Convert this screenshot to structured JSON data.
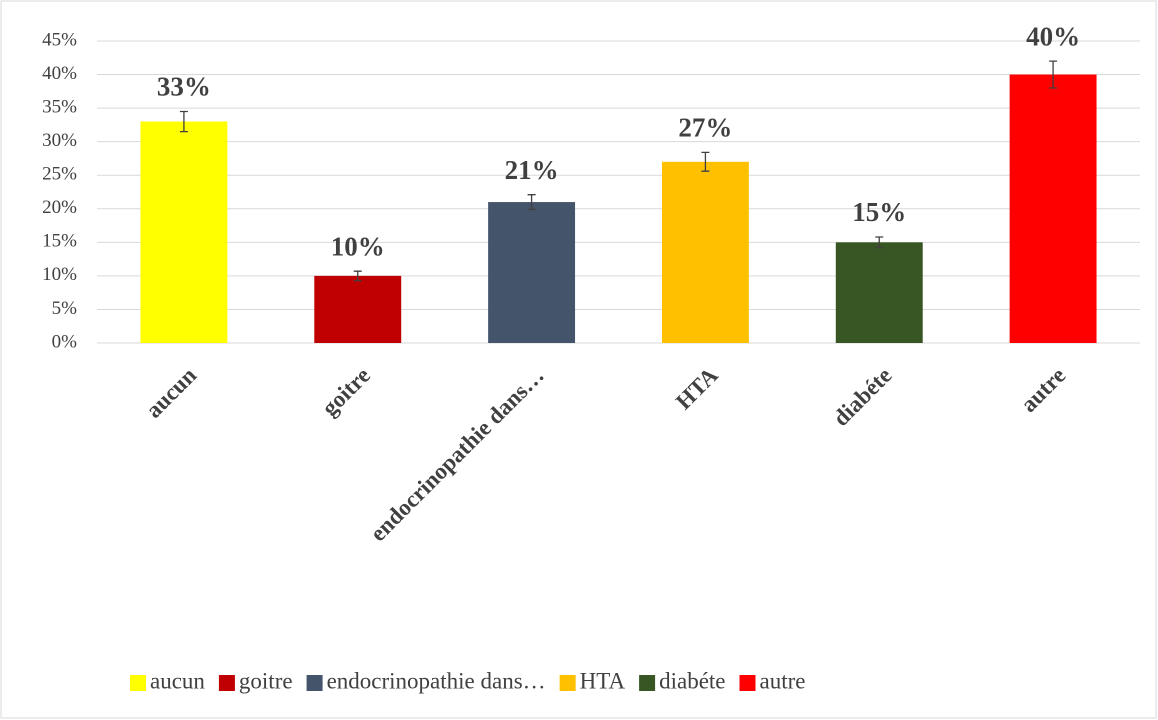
{
  "chart_data": {
    "type": "bar",
    "categories": [
      "aucun",
      "goitre",
      "endocrinopathie dans…",
      "HTA",
      "diabéte",
      "autre"
    ],
    "values": [
      33,
      10,
      21,
      27,
      15,
      40
    ],
    "value_labels": [
      "33%",
      "10%",
      "21%",
      "27%",
      "15%",
      "40%"
    ],
    "errors": [
      1.5,
      0.7,
      1.1,
      1.4,
      0.8,
      2.0
    ],
    "colors": [
      "#ffff00",
      "#c00000",
      "#44546a",
      "#ffc000",
      "#375623",
      "#ff0000"
    ],
    "ylim": [
      0,
      45
    ],
    "yticks": [
      {
        "value": 0,
        "label": "0%"
      },
      {
        "value": 5,
        "label": "5%"
      },
      {
        "value": 10,
        "label": "10%"
      },
      {
        "value": 15,
        "label": "15%"
      },
      {
        "value": 20,
        "label": "20%"
      },
      {
        "value": 25,
        "label": "25%"
      },
      {
        "value": 30,
        "label": "30%"
      },
      {
        "value": 35,
        "label": "35%"
      },
      {
        "value": 40,
        "label": "40%"
      },
      {
        "value": 45,
        "label": "45%"
      }
    ],
    "grid": true,
    "legend": "bottom"
  }
}
